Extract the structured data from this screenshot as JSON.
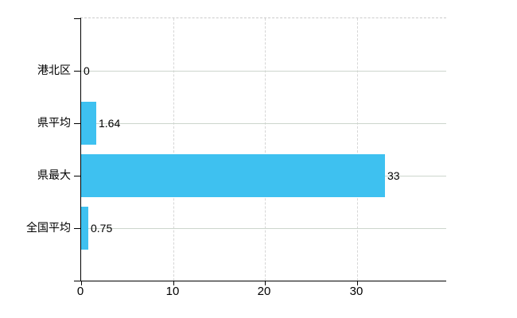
{
  "chart_data": {
    "type": "bar",
    "orientation": "horizontal",
    "title": "",
    "categories": [
      "港北区",
      "県平均",
      "県最大",
      "全国平均"
    ],
    "values": [
      0,
      1.64,
      33,
      0.75
    ],
    "value_labels": [
      "0",
      "1.64",
      "33",
      "0.75"
    ],
    "x_ticks": [
      0,
      10,
      20,
      30
    ],
    "x_tick_labels": [
      "0",
      "10",
      "20",
      "30"
    ],
    "xlim": [
      0,
      39.7
    ],
    "grid": true,
    "legend": false,
    "bar_color": "#3ec1f0",
    "axis_color": "#000000",
    "horizontal_grid_color": "#cdd6cd",
    "vertical_grid_color": "#d6d6d6",
    "top_border_color": "#cbcbcb",
    "text_color": "#000000"
  }
}
